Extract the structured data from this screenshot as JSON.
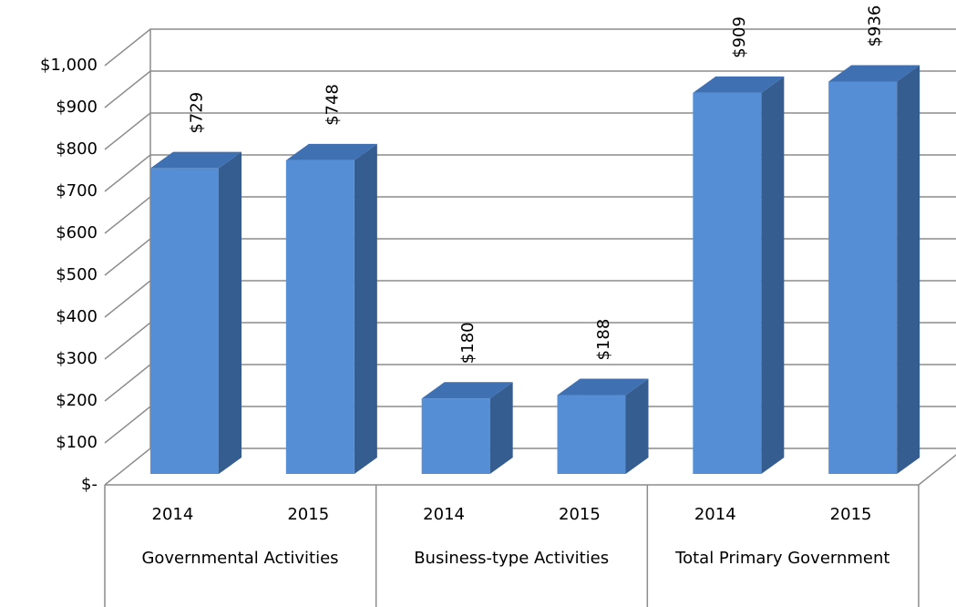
{
  "chart_data": {
    "type": "bar3d",
    "categories": [
      "2014",
      "2015",
      "2014",
      "2015",
      "2014",
      "2015"
    ],
    "groups": [
      "Governmental Activities",
      "Business-type Activities",
      "Total Primary Government"
    ],
    "values": [
      729,
      748,
      180,
      188,
      909,
      936
    ],
    "value_labels": [
      "$729",
      "$748",
      "$180",
      "$188",
      "$909",
      "$936"
    ],
    "color": "#558ed5",
    "ylim": [
      0,
      1000
    ],
    "yticks": [
      {
        "value": 0,
        "label": "$-"
      },
      {
        "value": 100,
        "label": "$100"
      },
      {
        "value": 200,
        "label": "$200"
      },
      {
        "value": 300,
        "label": "$300"
      },
      {
        "value": 400,
        "label": "$400"
      },
      {
        "value": 500,
        "label": "$500"
      },
      {
        "value": 600,
        "label": "$600"
      },
      {
        "value": 700,
        "label": "$700"
      },
      {
        "value": 800,
        "label": "$800"
      },
      {
        "value": 900,
        "label": "$900"
      },
      {
        "value": 1000,
        "label": "$1,000"
      }
    ],
    "grid": true
  }
}
